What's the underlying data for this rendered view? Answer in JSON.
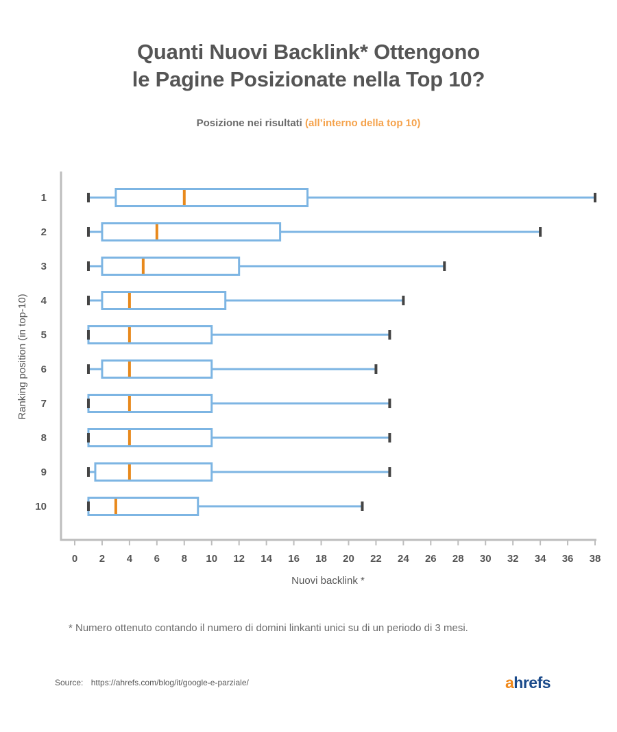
{
  "title_line1": "Quanti Nuovi Backlink* Ottengono",
  "title_line2": "le Pagine Posizionate nella Top 10?",
  "subtitle_main": "Posizione nei risultati",
  "subtitle_highlight": "(all’interno della top 10)",
  "footnote": "* Numero ottenuto contando il numero di domini linkanti unici su di un periodo di 3 mesi.",
  "source_label": "Source:",
  "source_url": "https://ahrefs.com/blog/it/google-e-parziale/",
  "logo_a": "a",
  "logo_rest": "hrefs",
  "colors": {
    "box": "#7db5e3",
    "median": "#e8891c",
    "whisker_cap": "#444444",
    "axis": "#bdbdbd",
    "text": "#555555"
  },
  "chart_data": {
    "type": "boxplot",
    "orientation": "horizontal",
    "xlabel": "Nuovi backlink *",
    "ylabel": "Ranking position (in top-10)",
    "xlim": [
      0,
      38
    ],
    "xticks": [
      0,
      2,
      4,
      6,
      8,
      10,
      12,
      14,
      16,
      18,
      20,
      22,
      24,
      26,
      28,
      30,
      32,
      34,
      36,
      38
    ],
    "categories": [
      "1",
      "2",
      "3",
      "4",
      "5",
      "6",
      "7",
      "8",
      "9",
      "10"
    ],
    "boxes": [
      {
        "position": "1",
        "min": 1,
        "q1": 3,
        "median": 8,
        "q3": 17,
        "max": 38
      },
      {
        "position": "2",
        "min": 1,
        "q1": 2,
        "median": 6,
        "q3": 15,
        "max": 34
      },
      {
        "position": "3",
        "min": 1,
        "q1": 2,
        "median": 5,
        "q3": 12,
        "max": 27
      },
      {
        "position": "4",
        "min": 1,
        "q1": 2,
        "median": 4,
        "q3": 11,
        "max": 24
      },
      {
        "position": "5",
        "min": 1,
        "q1": 1,
        "median": 4,
        "q3": 10,
        "max": 23
      },
      {
        "position": "6",
        "min": 1,
        "q1": 2,
        "median": 4,
        "q3": 10,
        "max": 22
      },
      {
        "position": "7",
        "min": 1,
        "q1": 1,
        "median": 4,
        "q3": 10,
        "max": 23
      },
      {
        "position": "8",
        "min": 1,
        "q1": 1,
        "median": 4,
        "q3": 10,
        "max": 23
      },
      {
        "position": "9",
        "min": 1,
        "q1": 1.5,
        "median": 4,
        "q3": 10,
        "max": 23
      },
      {
        "position": "10",
        "min": 1,
        "q1": 1,
        "median": 3,
        "q3": 9,
        "max": 21
      }
    ]
  }
}
